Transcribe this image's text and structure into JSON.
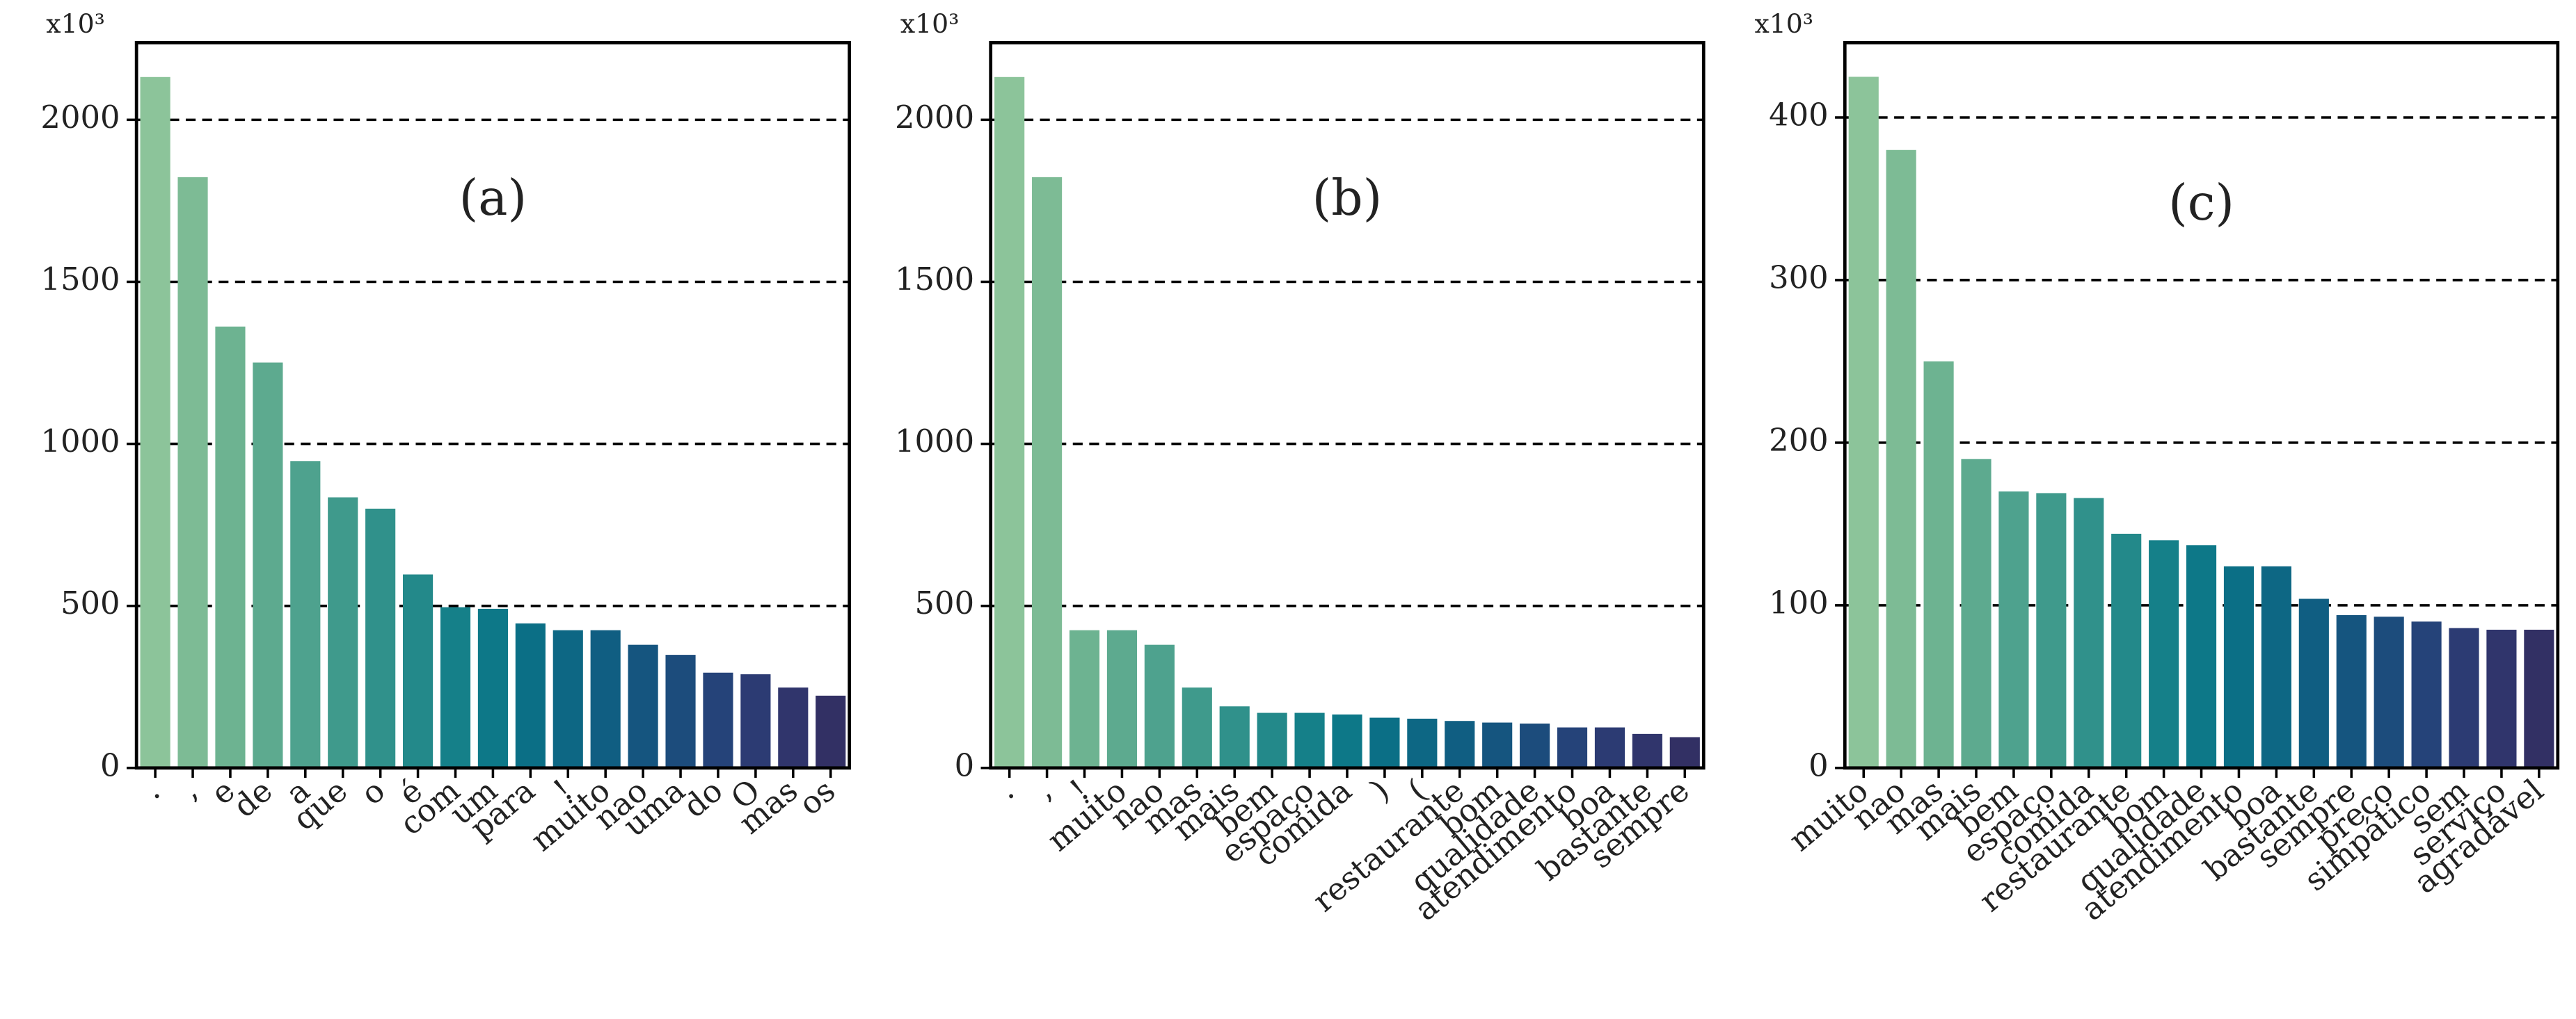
{
  "chart_data": [
    {
      "type": "bar",
      "title": "(a)",
      "multiplier": "x10³",
      "categories": [
        ".",
        ",",
        "e",
        "de",
        "a",
        "que",
        "o",
        "é",
        "com",
        "um",
        "para",
        "!",
        "muito",
        "nao",
        "uma",
        "do",
        "O",
        "mas",
        "os"
      ],
      "values": [
        2132,
        1823,
        1362,
        1251,
        947,
        835,
        800,
        597,
        496,
        491,
        446,
        425,
        425,
        380,
        349,
        294,
        289,
        248,
        223
      ],
      "colors": [
        "#8cc49a",
        "#7dbb95",
        "#6db391",
        "#5daa8f",
        "#4ea28e",
        "#3f9a8c",
        "#30918b",
        "#23898a",
        "#158089",
        "#0d7888",
        "#0b6f86",
        "#0d6784",
        "#105e82",
        "#15557f",
        "#1c4c7c",
        "#254379",
        "#2c3b73",
        "#30356c",
        "#323064"
      ],
      "ylim": [
        0,
        2238
      ],
      "yticks": [
        0,
        500,
        1000,
        1500,
        2000
      ],
      "grid": true
    },
    {
      "type": "bar",
      "title": "(b)",
      "multiplier": "x10³",
      "categories": [
        ".",
        ",",
        "!",
        "muito",
        "nao",
        "mas",
        "mais",
        "bem",
        "espaço",
        "comida",
        ")",
        "(",
        "restaurante",
        "bom",
        "qualidade",
        "atendimento",
        "boa",
        "bastante",
        "sempre"
      ],
      "values": [
        2132,
        1823,
        425,
        425,
        380,
        248,
        190,
        170,
        170,
        165,
        155,
        152,
        145,
        140,
        137,
        125,
        125,
        105,
        95
      ],
      "colors": [
        "#8cc49a",
        "#7dbb95",
        "#6db391",
        "#5daa8f",
        "#4ea28e",
        "#3f9a8c",
        "#30918b",
        "#23898a",
        "#158089",
        "#0d7888",
        "#0b6f86",
        "#0d6784",
        "#105e82",
        "#15557f",
        "#1c4c7c",
        "#254379",
        "#2c3b73",
        "#30356c",
        "#323064"
      ],
      "ylim": [
        0,
        2238
      ],
      "yticks": [
        0,
        500,
        1000,
        1500,
        2000
      ],
      "grid": true
    },
    {
      "type": "bar",
      "title": "(c)",
      "multiplier": "x10³",
      "categories": [
        "muito",
        "nao",
        "mas",
        "mais",
        "bem",
        "espaço",
        "comida",
        "restaurante",
        "bom",
        "qualidade",
        "atendimento",
        "boa",
        "bastante",
        "sempre",
        "preço",
        "simpático",
        "sem",
        "serviço",
        "agradável"
      ],
      "values": [
        425,
        380,
        250,
        190,
        170,
        169,
        166,
        144,
        140,
        137,
        124,
        124,
        104,
        94,
        93,
        90,
        86,
        85,
        85
      ],
      "colors": [
        "#8cc49a",
        "#7dbb95",
        "#6db391",
        "#5daa8f",
        "#4ea28e",
        "#3f9a8c",
        "#30918b",
        "#23898a",
        "#158089",
        "#0d7888",
        "#0b6f86",
        "#0d6784",
        "#105e82",
        "#15557f",
        "#1c4c7c",
        "#254379",
        "#2c3b73",
        "#30356c",
        "#323064"
      ],
      "ylim": [
        0,
        446
      ],
      "yticks": [
        0,
        100,
        200,
        300,
        400
      ],
      "grid": true
    }
  ]
}
